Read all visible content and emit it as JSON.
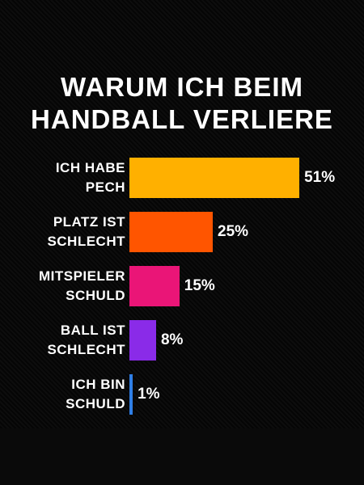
{
  "chart_data": {
    "type": "bar",
    "orientation": "horizontal",
    "title": "WARUM ICH BEIM HANDBALL VERLIERE",
    "categories": [
      "ICH HABE PECH",
      "PLATZ IST SCHLECHT",
      "MITSPIELER SCHULD",
      "BALL IST SCHLECHT",
      "ICH BIN SCHULD"
    ],
    "values": [
      51,
      25,
      15,
      8,
      1
    ],
    "value_labels": [
      "51%",
      "25%",
      "15%",
      "8%",
      "1%"
    ],
    "colors": [
      "#ffb000",
      "#ff5500",
      "#ea1577",
      "#8a2be8",
      "#2f7fe6"
    ]
  }
}
